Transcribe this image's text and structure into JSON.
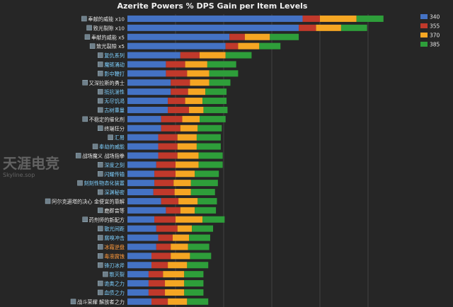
{
  "chart_data": {
    "type": "bar",
    "orientation": "horizontal",
    "stacked": true,
    "title": "Azerite Powers % DPS Gain per Item Levels",
    "xlabel": "",
    "ylabel": "",
    "xlim": [
      0,
      3.0
    ],
    "grid": true,
    "legend": "top-right",
    "categories": [
      "奉献的威能 x10",
      "致光裂隙 x10",
      "奉献的威能 x5",
      "致光裂隙 x5",
      "复仇系列",
      "魔链涌动",
      "影中鞭打",
      "又深拉斯的勇士",
      "抵抗湍性",
      "无尽饥渴",
      "古树重量",
      "不稳定的催化剂",
      "终端狂分",
      "汇易",
      "奉劫的威能",
      "战场魔义 战场指拳",
      "深度之刻",
      "闪耀传输",
      "刻刻性物态化装置",
      "深渊秘密",
      "阿尔克逦塔的决心 金便宜的靠解",
      "鹿群音等",
      "药剂师的新配方",
      "散光间距",
      "腐嗅冲击",
      "冰霜逆盘",
      "毒液腐蚀",
      "锋刃冰斧",
      "散灭裂",
      "诡奥之力",
      "血债之力",
      "战斗荣耀 解放者之力"
    ],
    "label_colors": [
      "white",
      "white",
      "white",
      "white",
      "blue",
      "blue",
      "blue",
      "white",
      "blue",
      "blue",
      "blue",
      "white",
      "white",
      "blue",
      "blue",
      "white",
      "blue",
      "blue",
      "blue",
      "blue",
      "white",
      "white",
      "white",
      "blue",
      "blue",
      "orange",
      "orange",
      "blue",
      "blue",
      "blue",
      "blue",
      "white"
    ],
    "series": [
      {
        "name": "340",
        "color": "#4472c4",
        "values": [
          1.82,
          1.78,
          1.06,
          1.02,
          0.55,
          0.4,
          0.4,
          0.45,
          0.45,
          0.42,
          0.42,
          0.35,
          0.35,
          0.32,
          0.32,
          0.32,
          0.3,
          0.28,
          0.28,
          0.27,
          0.35,
          0.4,
          0.28,
          0.3,
          0.32,
          0.3,
          0.25,
          0.25,
          0.22,
          0.22,
          0.22,
          0.25
        ]
      },
      {
        "name": "355",
        "color": "#c0392b",
        "values": [
          0.18,
          0.18,
          0.16,
          0.13,
          0.2,
          0.2,
          0.22,
          0.2,
          0.18,
          0.18,
          0.22,
          0.22,
          0.2,
          0.2,
          0.2,
          0.2,
          0.2,
          0.22,
          0.2,
          0.22,
          0.18,
          0.15,
          0.22,
          0.22,
          0.15,
          0.15,
          0.2,
          0.17,
          0.15,
          0.17,
          0.17,
          0.17
        ]
      },
      {
        "name": "370",
        "color": "#f5a623",
        "values": [
          0.38,
          0.26,
          0.26,
          0.22,
          0.27,
          0.23,
          0.23,
          0.2,
          0.18,
          0.18,
          0.15,
          0.18,
          0.18,
          0.2,
          0.2,
          0.22,
          0.24,
          0.2,
          0.18,
          0.17,
          0.2,
          0.15,
          0.28,
          0.15,
          0.17,
          0.18,
          0.2,
          0.2,
          0.22,
          0.2,
          0.2,
          0.2
        ]
      },
      {
        "name": "385",
        "color": "#2e9e3a",
        "values": [
          0.28,
          0.27,
          0.3,
          0.22,
          0.27,
          0.3,
          0.3,
          0.22,
          0.22,
          0.25,
          0.25,
          0.27,
          0.25,
          0.25,
          0.25,
          0.25,
          0.25,
          0.25,
          0.28,
          0.25,
          0.2,
          0.22,
          0.23,
          0.22,
          0.22,
          0.22,
          0.22,
          0.22,
          0.2,
          0.2,
          0.2,
          0.22
        ]
      }
    ]
  },
  "watermark": {
    "main": "天涯电竞",
    "sub": "Skyline.sop"
  }
}
